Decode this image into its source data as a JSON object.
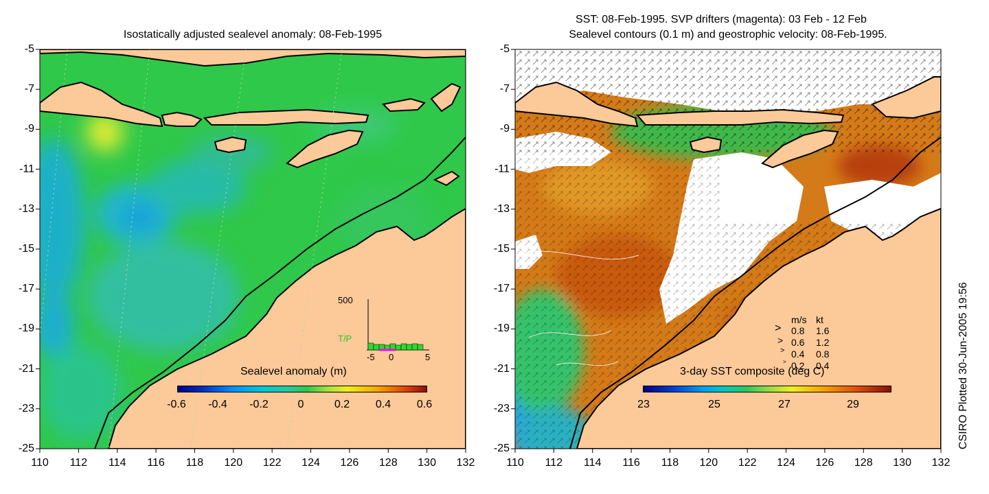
{
  "left_panel": {
    "title": "Isostatically adjusted sealevel anomaly: 08-Feb-1995",
    "colorbar": {
      "label": "Sealevel anomaly (m)",
      "ticks": [
        "-0.6",
        "-0.4",
        "-0.2",
        "0",
        "0.2",
        "0.4",
        "0.6"
      ],
      "range": [
        -0.6,
        0.6
      ]
    },
    "inset": {
      "top_label": "500",
      "series_label": "T/P",
      "x_ticks": [
        "-5",
        "0",
        "5"
      ]
    }
  },
  "right_panel": {
    "title_line1": "SST: 08-Feb-1995. SVP drifters (magenta): 03 Feb - 12 Feb",
    "title_line2": "Sealevel contours (0.1 m) and geostrophic velocity: 08-Feb-1995.",
    "colorbar": {
      "label": "3-day SST composite (deg C)",
      "ticks": [
        "23",
        "25",
        "27",
        "29"
      ],
      "range": [
        23,
        29.8
      ]
    },
    "velocity_key": {
      "header_ms": "m/s",
      "header_kt": "kt",
      "rows": [
        {
          "ms": "0.8",
          "kt": "1.6"
        },
        {
          "ms": "0.6",
          "kt": "1.2"
        },
        {
          "ms": "0.4",
          "kt": "0.8"
        },
        {
          "ms": "0.2",
          "kt": "0.4"
        }
      ]
    }
  },
  "axes": {
    "lat_ticks": [
      "-5",
      "-7",
      "-9",
      "-11",
      "-13",
      "-15",
      "-17",
      "-19",
      "-21",
      "-23",
      "-25"
    ],
    "lon_ticks": [
      "110",
      "112",
      "114",
      "116",
      "118",
      "120",
      "122",
      "124",
      "126",
      "128",
      "130",
      "132"
    ],
    "lat_range": [
      -25,
      -5
    ],
    "lon_range": [
      110,
      132
    ]
  },
  "credit": "CSIRO Plotted 30-Jun-2005 19:56",
  "colors": {
    "land": "#fcc999",
    "ocean_base": "#2fc84a",
    "cloud": "#ffffff"
  }
}
